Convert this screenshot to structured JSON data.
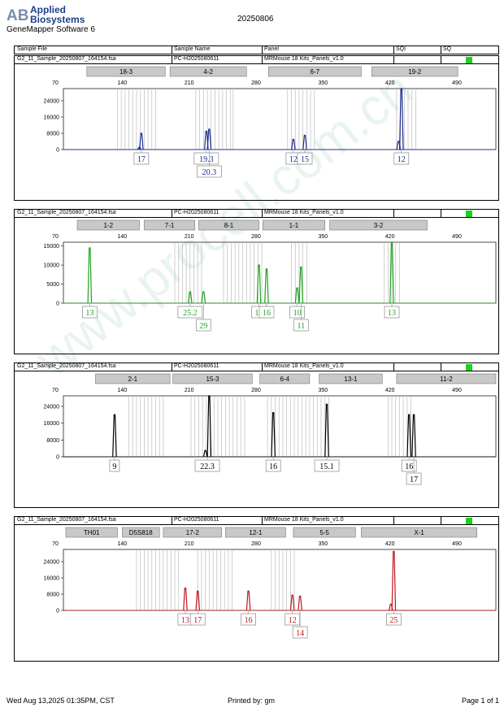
{
  "header": {
    "brand_line1": "Applied",
    "brand_line2": "Biosystems",
    "software": "GeneMapper Software 6",
    "run_date": "20250806"
  },
  "columns": {
    "sample_file": "Sample File",
    "sample_name": "Sample Name",
    "panel": "Panel",
    "sqi": "SQI",
    "sq": "SQ"
  },
  "sample": {
    "file": "G2_11_Sample_20250807_164154.fsa",
    "name": "PC-H2025080611",
    "panel": "MRMouse 18 Kits_Panels_v1.0"
  },
  "colors": {
    "blue": "#1a2a8c",
    "green": "#1fa21f",
    "black": "#000000",
    "red": "#c0161c",
    "flag": "#1fd11f"
  },
  "chart_data": [
    {
      "type": "line",
      "dye": "blue",
      "xlim": [
        70,
        490
      ],
      "x_ticks": [
        70,
        140,
        210,
        280,
        350,
        420,
        490
      ],
      "ylim": [
        0,
        30000
      ],
      "y_ticks": [
        0,
        8000,
        16000,
        24000
      ],
      "loci": [
        {
          "name": "18-3",
          "start": 103,
          "end": 185
        },
        {
          "name": "4-2",
          "start": 190,
          "end": 270
        },
        {
          "name": "6-7",
          "start": 293,
          "end": 390
        },
        {
          "name": "19-2",
          "start": 401,
          "end": 491
        }
      ],
      "bins": [
        135,
        139,
        143,
        147,
        151,
        155,
        159,
        163,
        167,
        171,
        175,
        217,
        221,
        225,
        229,
        233,
        237,
        241,
        245,
        249,
        253,
        256,
        313,
        317,
        321,
        325,
        329,
        333,
        337,
        341,
        427,
        431,
        435,
        439,
        443,
        447
      ],
      "peaks": [
        {
          "x": 160,
          "h": 8000
        },
        {
          "x": 158,
          "h": 1000
        },
        {
          "x": 228,
          "h": 9000
        },
        {
          "x": 231,
          "h": 10000
        },
        {
          "x": 319,
          "h": 5000
        },
        {
          "x": 331,
          "h": 7000
        },
        {
          "x": 429,
          "h": 4000
        },
        {
          "x": 432,
          "h": 30000
        }
      ],
      "calls": [
        {
          "label": "17",
          "x": 160,
          "row": 0
        },
        {
          "label": "19.3",
          "x": 228,
          "row": 0
        },
        {
          "label": "20.3",
          "x": 231,
          "row": 1
        },
        {
          "label": "12",
          "x": 319,
          "row": 0
        },
        {
          "label": "15",
          "x": 331,
          "row": 0
        },
        {
          "label": "12",
          "x": 432,
          "row": 0
        }
      ]
    },
    {
      "type": "line",
      "dye": "green",
      "xlim": [
        70,
        490
      ],
      "x_ticks": [
        70,
        140,
        210,
        280,
        350,
        420,
        490
      ],
      "ylim": [
        0,
        16000
      ],
      "y_ticks": [
        0,
        5000,
        10000,
        15000
      ],
      "loci": [
        {
          "name": "1-2",
          "start": 93,
          "end": 158
        },
        {
          "name": "7-1",
          "start": 163,
          "end": 216
        },
        {
          "name": "8-1",
          "start": 220,
          "end": 283
        },
        {
          "name": "1-1",
          "start": 287,
          "end": 352
        },
        {
          "name": "3-2",
          "start": 357,
          "end": 459
        }
      ],
      "bins": [
        195,
        199,
        203,
        207,
        211,
        215,
        219,
        223,
        246,
        250,
        254,
        258,
        262,
        266,
        270,
        274,
        278,
        282,
        286,
        317,
        321,
        325,
        329,
        333,
        414,
        418,
        422,
        426,
        430
      ],
      "peaks": [
        {
          "x": 106,
          "h": 14500
        },
        {
          "x": 211,
          "h": 3000
        },
        {
          "x": 225,
          "h": 3000
        },
        {
          "x": 283,
          "h": 10000
        },
        {
          "x": 291,
          "h": 9000
        },
        {
          "x": 323,
          "h": 4000
        },
        {
          "x": 327,
          "h": 9500
        },
        {
          "x": 422,
          "h": 16000
        }
      ],
      "calls": [
        {
          "label": "13",
          "x": 106,
          "row": 0
        },
        {
          "label": "25.2",
          "x": 211,
          "row": 0
        },
        {
          "label": "29",
          "x": 225,
          "row": 1
        },
        {
          "label": "13",
          "x": 283,
          "row": 0
        },
        {
          "label": "16",
          "x": 291,
          "row": 0
        },
        {
          "label": "10",
          "x": 323,
          "row": 0
        },
        {
          "label": "11",
          "x": 327,
          "row": 1
        },
        {
          "label": "13",
          "x": 422,
          "row": 0
        }
      ]
    },
    {
      "type": "line",
      "dye": "black",
      "xlim": [
        70,
        490
      ],
      "x_ticks": [
        70,
        140,
        210,
        280,
        350,
        420,
        490
      ],
      "ylim": [
        0,
        29000
      ],
      "y_ticks": [
        0,
        8000,
        16000,
        24000
      ],
      "loci": [
        {
          "name": "2-1",
          "start": 112,
          "end": 190
        },
        {
          "name": "15-3",
          "start": 193,
          "end": 276
        },
        {
          "name": "6-4",
          "start": 284,
          "end": 336
        },
        {
          "name": "13-1",
          "start": 346,
          "end": 412
        },
        {
          "name": "11-2",
          "start": 427,
          "end": 538
        }
      ],
      "bins": [
        147,
        151,
        155,
        159,
        163,
        167,
        171,
        175,
        179,
        183,
        212,
        216,
        220,
        224,
        228,
        232,
        236,
        240,
        244,
        248,
        252,
        256,
        260,
        264,
        268,
        292,
        296,
        300,
        304,
        308,
        312,
        316,
        320,
        324,
        328,
        332,
        336,
        340,
        344,
        348,
        352,
        356,
        418,
        422,
        426,
        430,
        434,
        438,
        442
      ],
      "peaks": [
        {
          "x": 132,
          "h": 20000
        },
        {
          "x": 231,
          "h": 29000
        },
        {
          "x": 227,
          "h": 3000
        },
        {
          "x": 298,
          "h": 21000
        },
        {
          "x": 354,
          "h": 25000
        },
        {
          "x": 440,
          "h": 20000
        },
        {
          "x": 445,
          "h": 20000
        }
      ],
      "calls": [
        {
          "label": "9",
          "x": 132,
          "row": 0
        },
        {
          "label": "22.3",
          "x": 229,
          "row": 0
        },
        {
          "label": "16",
          "x": 298,
          "row": 0
        },
        {
          "label": "15.1",
          "x": 354,
          "row": 0
        },
        {
          "label": "16",
          "x": 440,
          "row": 0
        },
        {
          "label": "17",
          "x": 445,
          "row": 1
        }
      ]
    },
    {
      "type": "line",
      "dye": "red",
      "xlim": [
        70,
        490
      ],
      "x_ticks": [
        70,
        140,
        210,
        280,
        350,
        420,
        490
      ],
      "ylim": [
        0,
        30000
      ],
      "y_ticks": [
        0,
        8000,
        16000,
        24000
      ],
      "loci": [
        {
          "name": "TH01",
          "start": 81,
          "end": 135
        },
        {
          "name": "D5S818",
          "start": 140,
          "end": 179
        },
        {
          "name": "17-2",
          "start": 183,
          "end": 244
        },
        {
          "name": "12-1",
          "start": 248,
          "end": 311
        },
        {
          "name": "5-5",
          "start": 319,
          "end": 384
        },
        {
          "name": "X-1",
          "start": 390,
          "end": 511
        }
      ],
      "bins": [
        155,
        159,
        163,
        167,
        171,
        175,
        179,
        183,
        187,
        191,
        195,
        199,
        219,
        223,
        227,
        231,
        235,
        239,
        243,
        247,
        251,
        255,
        296,
        300,
        304,
        308,
        312,
        316,
        320
      ],
      "peaks": [
        {
          "x": 206,
          "h": 11000
        },
        {
          "x": 219,
          "h": 9500
        },
        {
          "x": 272,
          "h": 9500
        },
        {
          "x": 318,
          "h": 7500
        },
        {
          "x": 326,
          "h": 7000
        },
        {
          "x": 421,
          "h": 3000
        },
        {
          "x": 424,
          "h": 29000
        }
      ],
      "calls": [
        {
          "label": "13",
          "x": 206,
          "row": 0
        },
        {
          "label": "17",
          "x": 219,
          "row": 0
        },
        {
          "label": "16",
          "x": 272,
          "row": 0
        },
        {
          "label": "12",
          "x": 318,
          "row": 0
        },
        {
          "label": "14",
          "x": 326,
          "row": 1
        },
        {
          "label": "25",
          "x": 424,
          "row": 0
        }
      ]
    }
  ],
  "footer": {
    "timestamp": "Wed Aug 13,2025 01:35PM, CST",
    "printed_by": "Printed by: gm",
    "page": "Page 1 of 1"
  }
}
